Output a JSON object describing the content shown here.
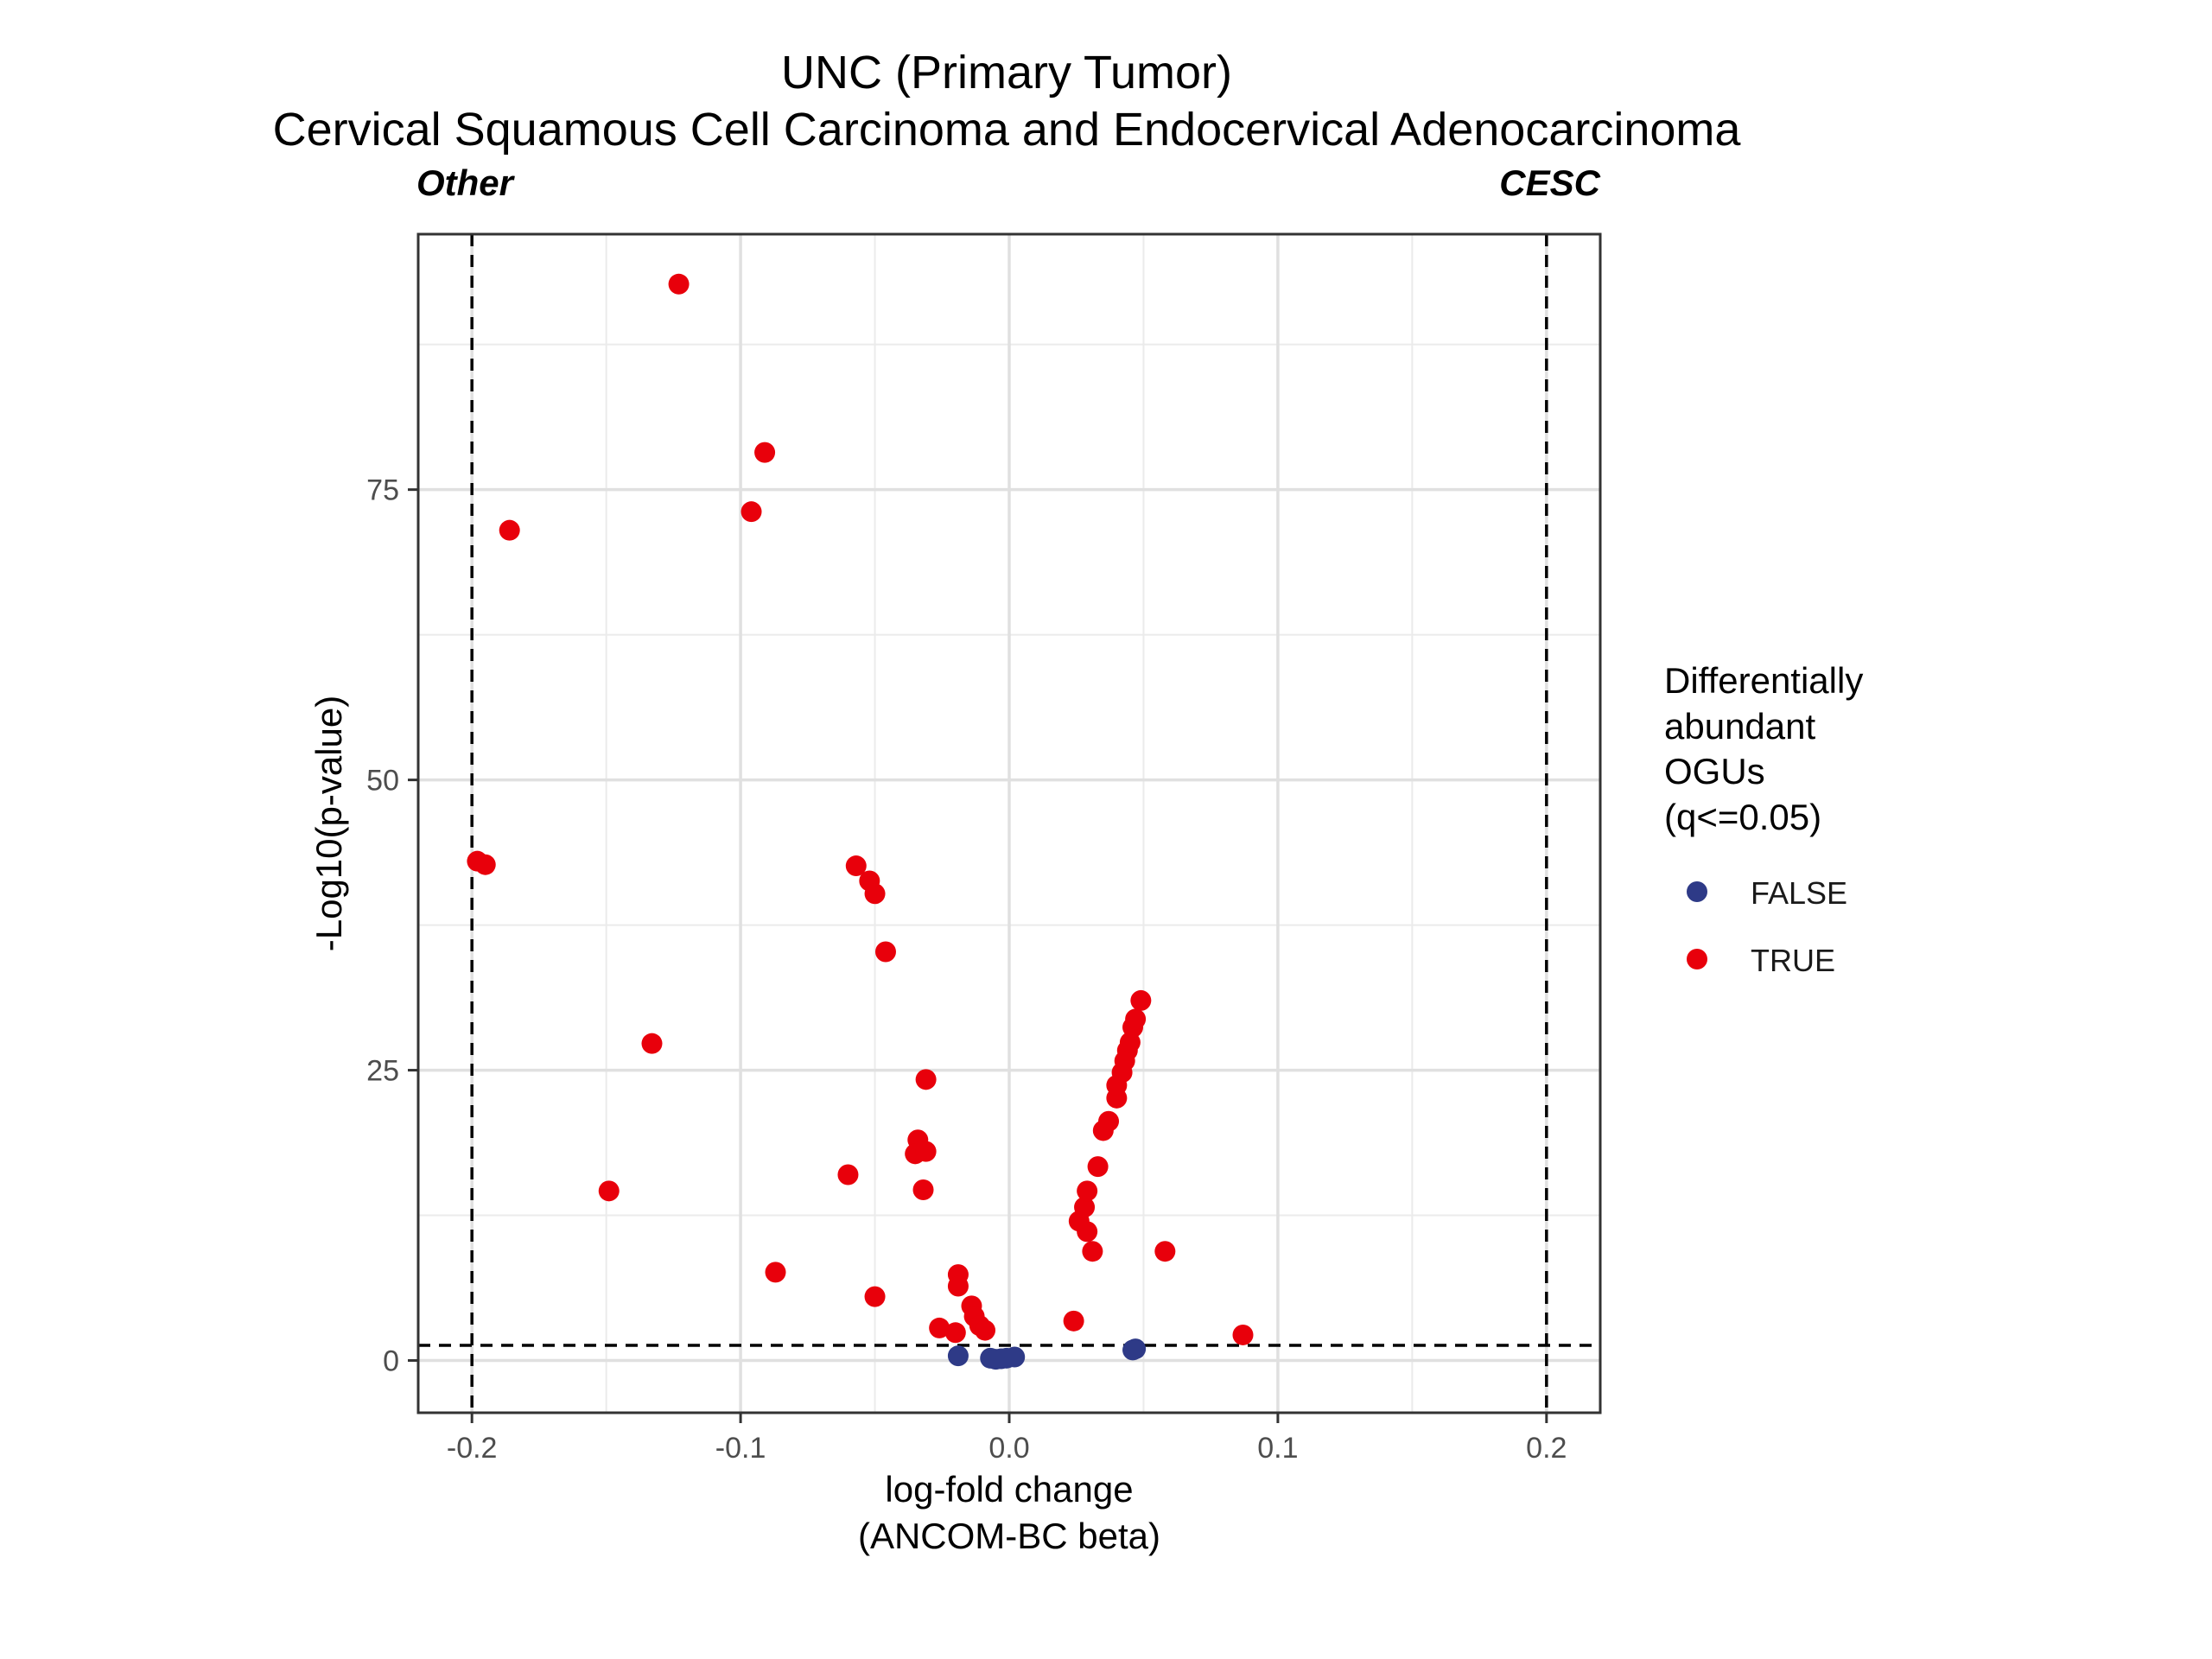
{
  "chart_data": {
    "type": "scatter",
    "title": "UNC (Primary Tumor)",
    "subtitle": "Cervical Squamous Cell Carcinoma and Endocervical Adenocarcinoma",
    "corner_labels": {
      "left": "Other",
      "right": "CESC"
    },
    "xlabel": [
      "log-fold change",
      "(ANCOM-BC beta)"
    ],
    "ylabel": "-Log10(p-value)",
    "xlim": [
      -0.22,
      0.22
    ],
    "ylim": [
      -4.5,
      97
    ],
    "x_ticks": [
      -0.2,
      -0.1,
      0.0,
      0.1,
      0.2
    ],
    "x_tick_labels": [
      "-0.2",
      "-0.1",
      "0.0",
      "0.1",
      "0.2"
    ],
    "y_ticks": [
      0,
      25,
      50,
      75
    ],
    "y_tick_labels": [
      "0",
      "25",
      "50",
      "75"
    ],
    "grid": true,
    "reference_lines": {
      "vertical": [
        -0.2,
        0.2
      ],
      "horizontal": [
        1.3
      ],
      "style": "dashed"
    },
    "legend": {
      "title": [
        "Differentially",
        "abundant",
        "OGUs",
        "(q<=0.05)"
      ],
      "position": "right",
      "entries": [
        {
          "label": "FALSE",
          "color": "#2e3a87"
        },
        {
          "label": "TRUE",
          "color": "#e8000b"
        }
      ]
    },
    "series": [
      {
        "name": "FALSE",
        "color": "#2e3a87",
        "points": [
          [
            -0.019,
            0.4
          ],
          [
            -0.007,
            0.2
          ],
          [
            -0.005,
            0.1
          ],
          [
            -0.003,
            0.15
          ],
          [
            -0.001,
            0.2
          ],
          [
            0.002,
            0.3
          ],
          [
            0.046,
            0.9
          ],
          [
            0.047,
            1.0
          ]
        ]
      },
      {
        "name": "TRUE",
        "color": "#e8000b",
        "points": [
          [
            -0.123,
            92.7
          ],
          [
            -0.091,
            78.2
          ],
          [
            -0.096,
            73.1
          ],
          [
            -0.186,
            71.5
          ],
          [
            -0.198,
            43.0
          ],
          [
            -0.195,
            42.7
          ],
          [
            -0.057,
            42.6
          ],
          [
            -0.052,
            41.3
          ],
          [
            -0.05,
            40.2
          ],
          [
            -0.046,
            35.2
          ],
          [
            -0.133,
            27.3
          ],
          [
            -0.031,
            24.2
          ],
          [
            -0.034,
            19.0
          ],
          [
            -0.035,
            17.8
          ],
          [
            -0.031,
            18.0
          ],
          [
            -0.06,
            16.0
          ],
          [
            -0.149,
            14.6
          ],
          [
            -0.032,
            14.7
          ],
          [
            -0.087,
            7.6
          ],
          [
            -0.05,
            5.5
          ],
          [
            -0.019,
            7.4
          ],
          [
            -0.019,
            6.4
          ],
          [
            -0.014,
            4.7
          ],
          [
            -0.013,
            3.8
          ],
          [
            -0.011,
            3.0
          ],
          [
            -0.009,
            2.6
          ],
          [
            -0.026,
            2.8
          ],
          [
            -0.02,
            2.4
          ],
          [
            0.024,
            3.4
          ],
          [
            0.087,
            2.2
          ],
          [
            0.058,
            9.4
          ],
          [
            0.031,
            9.4
          ],
          [
            0.029,
            11.1
          ],
          [
            0.026,
            12.0
          ],
          [
            0.028,
            13.2
          ],
          [
            0.029,
            14.6
          ],
          [
            0.033,
            16.7
          ],
          [
            0.035,
            19.8
          ],
          [
            0.037,
            20.6
          ],
          [
            0.04,
            22.6
          ],
          [
            0.04,
            23.7
          ],
          [
            0.042,
            24.8
          ],
          [
            0.043,
            25.8
          ],
          [
            0.044,
            26.7
          ],
          [
            0.045,
            27.4
          ],
          [
            0.046,
            28.7
          ],
          [
            0.047,
            29.4
          ],
          [
            0.049,
            31.0
          ]
        ]
      }
    ]
  }
}
